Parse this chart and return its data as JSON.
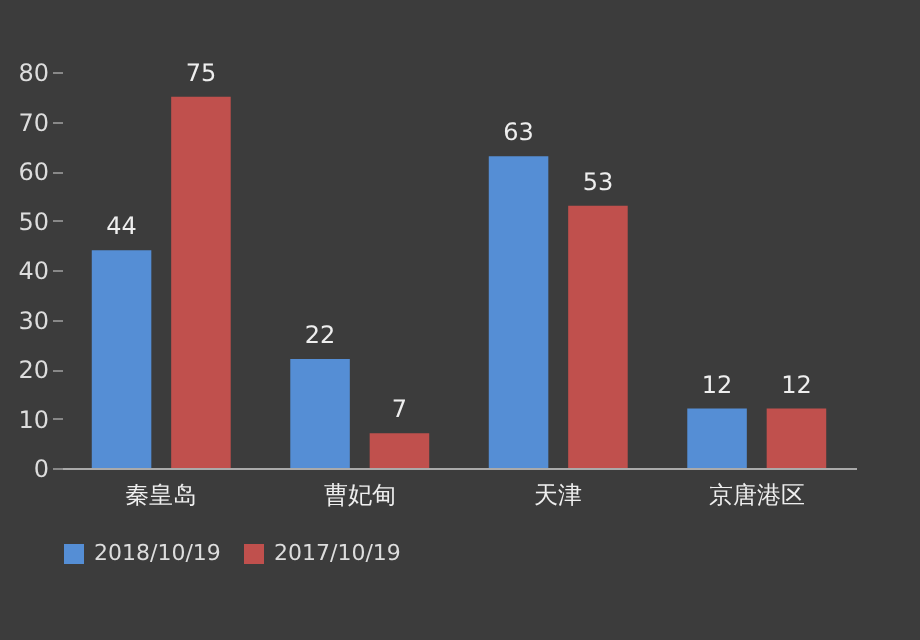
{
  "chart_data": {
    "type": "bar",
    "categories": [
      "秦皇岛",
      "曹妃甸",
      "天津",
      "京唐港区"
    ],
    "series": [
      {
        "name": "2018/10/19",
        "color": "#558ed5",
        "values": [
          44,
          22,
          63,
          12
        ]
      },
      {
        "name": "2017/10/19",
        "color": "#c0504d",
        "values": [
          75,
          7,
          53,
          12
        ]
      }
    ],
    "ylim": [
      0,
      80
    ],
    "yticks": [
      0,
      10,
      20,
      30,
      40,
      50,
      60,
      70,
      80
    ],
    "data_labels": true,
    "legend": "bottom"
  }
}
